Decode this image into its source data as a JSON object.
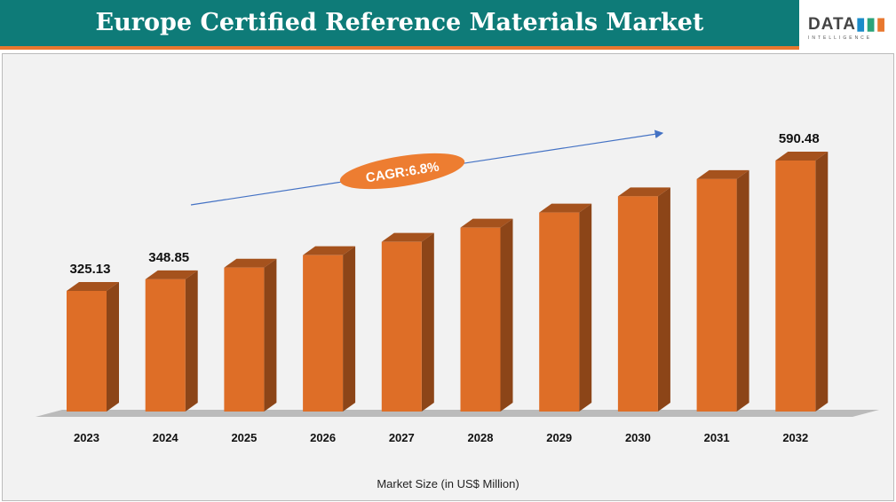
{
  "header": {
    "title": "Europe Certified Reference Materials Market",
    "logo_main": "DATA",
    "logo_sub": "INTELLIGENCE"
  },
  "chart_data": {
    "type": "bar",
    "title": "Europe Certified Reference Materials Market",
    "xlabel": "Market Size (in US$ Million)",
    "ylabel": "",
    "categories": [
      "2023",
      "2024",
      "2025",
      "2026",
      "2027",
      "2028",
      "2029",
      "2030",
      "2031",
      "2032"
    ],
    "values": [
      325.13,
      348.85,
      372.6,
      397.9,
      425.0,
      453.9,
      484.7,
      517.7,
      552.9,
      590.48
    ],
    "data_labels": {
      "2023": "325.13",
      "2024": "348.85",
      "2032": "590.48"
    },
    "annotation": "CAGR:6.8%",
    "bar_color": "#de6e27",
    "grid": false,
    "legend": "none"
  }
}
